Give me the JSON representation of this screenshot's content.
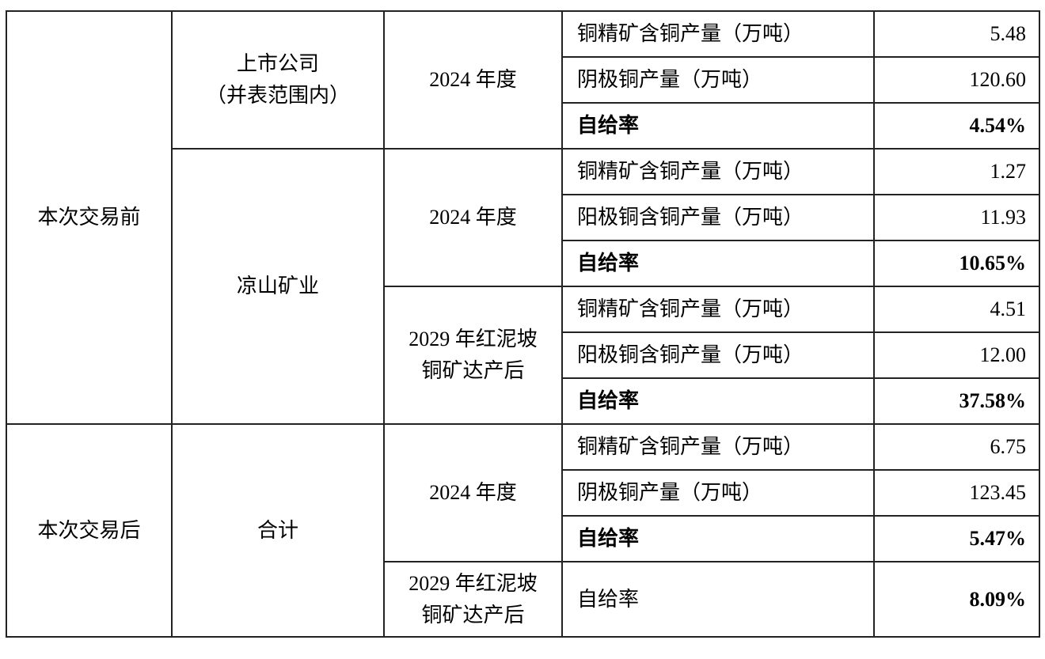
{
  "before": {
    "label": "本次交易前",
    "listed": {
      "name_line1": "上市公司",
      "name_line2": "（并表范围内）",
      "period": "2024 年度",
      "rows": [
        {
          "label": "铜精矿含铜产量（万吨）",
          "value": "5.48"
        },
        {
          "label": "阴极铜产量（万吨）",
          "value": "120.60"
        },
        {
          "label": "自给率",
          "value": "4.54%"
        }
      ]
    },
    "liangshan": {
      "name": "凉山矿业",
      "p2024": {
        "period": "2024 年度",
        "rows": [
          {
            "label": "铜精矿含铜产量（万吨）",
            "value": "1.27"
          },
          {
            "label": "阳极铜含铜产量（万吨）",
            "value": "11.93"
          },
          {
            "label": "自给率",
            "value": "10.65%"
          }
        ]
      },
      "p2029": {
        "period_line1": "2029 年红泥坡",
        "period_line2": "铜矿达产后",
        "rows": [
          {
            "label": "铜精矿含铜产量（万吨）",
            "value": "4.51"
          },
          {
            "label": "阳极铜含铜产量（万吨）",
            "value": "12.00"
          },
          {
            "label": "自给率",
            "value": "37.58%"
          }
        ]
      }
    }
  },
  "after": {
    "label": "本次交易后",
    "name": "合计",
    "p2024": {
      "period": "2024 年度",
      "rows": [
        {
          "label": "铜精矿含铜产量（万吨）",
          "value": "6.75"
        },
        {
          "label": "阴极铜产量（万吨）",
          "value": "123.45"
        },
        {
          "label": "自给率",
          "value": "5.47%"
        }
      ]
    },
    "p2029": {
      "period_line1": "2029 年红泥坡",
      "period_line2": "铜矿达产后",
      "rows": [
        {
          "label": "自给率",
          "value": "8.09%"
        }
      ]
    }
  }
}
